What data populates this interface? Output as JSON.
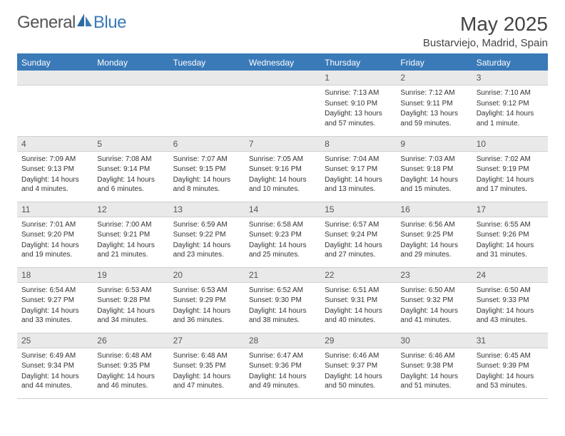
{
  "brand": {
    "text1": "General",
    "text2": "Blue"
  },
  "title": "May 2025",
  "location": "Bustarviejo, Madrid, Spain",
  "colors": {
    "header_bg": "#3a7ab8",
    "header_text": "#ffffff",
    "daynum_bg": "#e9e9e9",
    "text": "#333333",
    "divider": "#3a7ab8"
  },
  "layout": {
    "columns": 7,
    "rows": 5
  },
  "day_headers": [
    "Sunday",
    "Monday",
    "Tuesday",
    "Wednesday",
    "Thursday",
    "Friday",
    "Saturday"
  ],
  "weeks": [
    [
      {
        "empty": true
      },
      {
        "empty": true
      },
      {
        "empty": true
      },
      {
        "empty": true
      },
      {
        "n": "1",
        "sunrise": "Sunrise: 7:13 AM",
        "sunset": "Sunset: 9:10 PM",
        "daylight": "Daylight: 13 hours and 57 minutes."
      },
      {
        "n": "2",
        "sunrise": "Sunrise: 7:12 AM",
        "sunset": "Sunset: 9:11 PM",
        "daylight": "Daylight: 13 hours and 59 minutes."
      },
      {
        "n": "3",
        "sunrise": "Sunrise: 7:10 AM",
        "sunset": "Sunset: 9:12 PM",
        "daylight": "Daylight: 14 hours and 1 minute."
      }
    ],
    [
      {
        "n": "4",
        "sunrise": "Sunrise: 7:09 AM",
        "sunset": "Sunset: 9:13 PM",
        "daylight": "Daylight: 14 hours and 4 minutes."
      },
      {
        "n": "5",
        "sunrise": "Sunrise: 7:08 AM",
        "sunset": "Sunset: 9:14 PM",
        "daylight": "Daylight: 14 hours and 6 minutes."
      },
      {
        "n": "6",
        "sunrise": "Sunrise: 7:07 AM",
        "sunset": "Sunset: 9:15 PM",
        "daylight": "Daylight: 14 hours and 8 minutes."
      },
      {
        "n": "7",
        "sunrise": "Sunrise: 7:05 AM",
        "sunset": "Sunset: 9:16 PM",
        "daylight": "Daylight: 14 hours and 10 minutes."
      },
      {
        "n": "8",
        "sunrise": "Sunrise: 7:04 AM",
        "sunset": "Sunset: 9:17 PM",
        "daylight": "Daylight: 14 hours and 13 minutes."
      },
      {
        "n": "9",
        "sunrise": "Sunrise: 7:03 AM",
        "sunset": "Sunset: 9:18 PM",
        "daylight": "Daylight: 14 hours and 15 minutes."
      },
      {
        "n": "10",
        "sunrise": "Sunrise: 7:02 AM",
        "sunset": "Sunset: 9:19 PM",
        "daylight": "Daylight: 14 hours and 17 minutes."
      }
    ],
    [
      {
        "n": "11",
        "sunrise": "Sunrise: 7:01 AM",
        "sunset": "Sunset: 9:20 PM",
        "daylight": "Daylight: 14 hours and 19 minutes."
      },
      {
        "n": "12",
        "sunrise": "Sunrise: 7:00 AM",
        "sunset": "Sunset: 9:21 PM",
        "daylight": "Daylight: 14 hours and 21 minutes."
      },
      {
        "n": "13",
        "sunrise": "Sunrise: 6:59 AM",
        "sunset": "Sunset: 9:22 PM",
        "daylight": "Daylight: 14 hours and 23 minutes."
      },
      {
        "n": "14",
        "sunrise": "Sunrise: 6:58 AM",
        "sunset": "Sunset: 9:23 PM",
        "daylight": "Daylight: 14 hours and 25 minutes."
      },
      {
        "n": "15",
        "sunrise": "Sunrise: 6:57 AM",
        "sunset": "Sunset: 9:24 PM",
        "daylight": "Daylight: 14 hours and 27 minutes."
      },
      {
        "n": "16",
        "sunrise": "Sunrise: 6:56 AM",
        "sunset": "Sunset: 9:25 PM",
        "daylight": "Daylight: 14 hours and 29 minutes."
      },
      {
        "n": "17",
        "sunrise": "Sunrise: 6:55 AM",
        "sunset": "Sunset: 9:26 PM",
        "daylight": "Daylight: 14 hours and 31 minutes."
      }
    ],
    [
      {
        "n": "18",
        "sunrise": "Sunrise: 6:54 AM",
        "sunset": "Sunset: 9:27 PM",
        "daylight": "Daylight: 14 hours and 33 minutes."
      },
      {
        "n": "19",
        "sunrise": "Sunrise: 6:53 AM",
        "sunset": "Sunset: 9:28 PM",
        "daylight": "Daylight: 14 hours and 34 minutes."
      },
      {
        "n": "20",
        "sunrise": "Sunrise: 6:53 AM",
        "sunset": "Sunset: 9:29 PM",
        "daylight": "Daylight: 14 hours and 36 minutes."
      },
      {
        "n": "21",
        "sunrise": "Sunrise: 6:52 AM",
        "sunset": "Sunset: 9:30 PM",
        "daylight": "Daylight: 14 hours and 38 minutes."
      },
      {
        "n": "22",
        "sunrise": "Sunrise: 6:51 AM",
        "sunset": "Sunset: 9:31 PM",
        "daylight": "Daylight: 14 hours and 40 minutes."
      },
      {
        "n": "23",
        "sunrise": "Sunrise: 6:50 AM",
        "sunset": "Sunset: 9:32 PM",
        "daylight": "Daylight: 14 hours and 41 minutes."
      },
      {
        "n": "24",
        "sunrise": "Sunrise: 6:50 AM",
        "sunset": "Sunset: 9:33 PM",
        "daylight": "Daylight: 14 hours and 43 minutes."
      }
    ],
    [
      {
        "n": "25",
        "sunrise": "Sunrise: 6:49 AM",
        "sunset": "Sunset: 9:34 PM",
        "daylight": "Daylight: 14 hours and 44 minutes."
      },
      {
        "n": "26",
        "sunrise": "Sunrise: 6:48 AM",
        "sunset": "Sunset: 9:35 PM",
        "daylight": "Daylight: 14 hours and 46 minutes."
      },
      {
        "n": "27",
        "sunrise": "Sunrise: 6:48 AM",
        "sunset": "Sunset: 9:35 PM",
        "daylight": "Daylight: 14 hours and 47 minutes."
      },
      {
        "n": "28",
        "sunrise": "Sunrise: 6:47 AM",
        "sunset": "Sunset: 9:36 PM",
        "daylight": "Daylight: 14 hours and 49 minutes."
      },
      {
        "n": "29",
        "sunrise": "Sunrise: 6:46 AM",
        "sunset": "Sunset: 9:37 PM",
        "daylight": "Daylight: 14 hours and 50 minutes."
      },
      {
        "n": "30",
        "sunrise": "Sunrise: 6:46 AM",
        "sunset": "Sunset: 9:38 PM",
        "daylight": "Daylight: 14 hours and 51 minutes."
      },
      {
        "n": "31",
        "sunrise": "Sunrise: 6:45 AM",
        "sunset": "Sunset: 9:39 PM",
        "daylight": "Daylight: 14 hours and 53 minutes."
      }
    ]
  ]
}
